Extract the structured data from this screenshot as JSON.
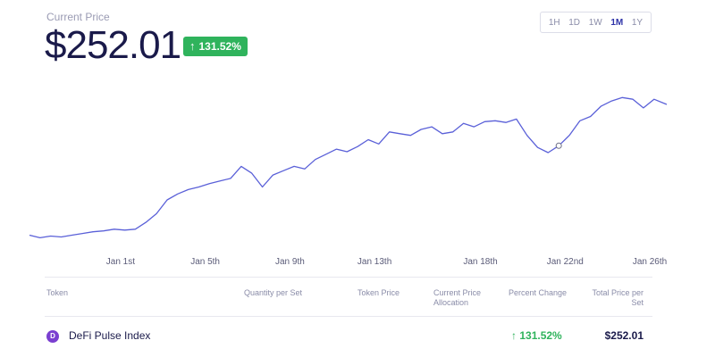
{
  "header": {
    "price_label": "Current Price",
    "price_value": "$252.01",
    "change": "131.52%",
    "change_arrow": "↑"
  },
  "ranges": [
    {
      "label": "1H",
      "active": false
    },
    {
      "label": "1D",
      "active": false
    },
    {
      "label": "1W",
      "active": false
    },
    {
      "label": "1M",
      "active": true
    },
    {
      "label": "1Y",
      "active": false
    }
  ],
  "table": {
    "headers": {
      "token": "Token",
      "quantity": "Quantity per Set",
      "token_price": "Token Price",
      "allocation": "Current Price Allocation",
      "percent_change": "Percent Change",
      "total_price": "Total Price per Set"
    },
    "rows": [
      {
        "icon_letter": "D",
        "token": "DeFi Pulse Index",
        "percent_change": "131.52%",
        "percent_arrow": "↑",
        "total_price": "$252.01"
      }
    ]
  },
  "colors": {
    "line": "#5a60d8",
    "positive": "#2fb35c",
    "accent": "#2e33a8"
  },
  "chart_data": {
    "type": "line",
    "x_ticks": [
      "Jan 1st",
      "Jan 5th",
      "Jan 9th",
      "Jan 13th",
      "Jan 18th",
      "Jan 22nd",
      "Jan 26th"
    ],
    "x_tick_positions": [
      1,
      5,
      9,
      13,
      18,
      22,
      26
    ],
    "x_range": [
      -3.3,
      26.8
    ],
    "ylim": [
      95,
      290
    ],
    "series": [
      {
        "x": [
          -3.3,
          -2.8,
          -2.3,
          -1.8,
          -1.3,
          -0.8,
          -0.3,
          0.2,
          0.7,
          1.2,
          1.7,
          2.2,
          2.7,
          3.2,
          3.7,
          4.2,
          4.7,
          5.2,
          5.7,
          6.2,
          6.7,
          7.2,
          7.7,
          8.2,
          8.7,
          9.2,
          9.7,
          10.2,
          10.7,
          11.2,
          11.7,
          12.2,
          12.7,
          13.2,
          13.7,
          14.2,
          14.7,
          15.2,
          15.7,
          16.2,
          16.7,
          17.2,
          17.7,
          18.2,
          18.7,
          19.2,
          19.7,
          20.2,
          20.7,
          21.2,
          21.7,
          22.2,
          22.7,
          23.2,
          23.7,
          24.2,
          24.7,
          25.2,
          25.7,
          26.2,
          26.8
        ],
        "y": [
          110,
          107,
          109,
          108,
          110,
          112,
          114,
          115,
          117,
          116,
          117,
          125,
          135,
          151,
          158,
          163,
          166,
          170,
          173,
          176,
          190,
          182,
          166,
          180,
          185,
          190,
          187,
          198,
          204,
          210,
          207,
          213,
          221,
          216,
          230,
          228,
          226,
          233,
          236,
          228,
          230,
          240,
          236,
          242,
          243,
          241,
          245,
          226,
          212,
          206,
          214,
          226,
          243,
          248,
          260,
          266,
          270,
          268,
          258,
          268,
          262
        ]
      }
    ]
  }
}
